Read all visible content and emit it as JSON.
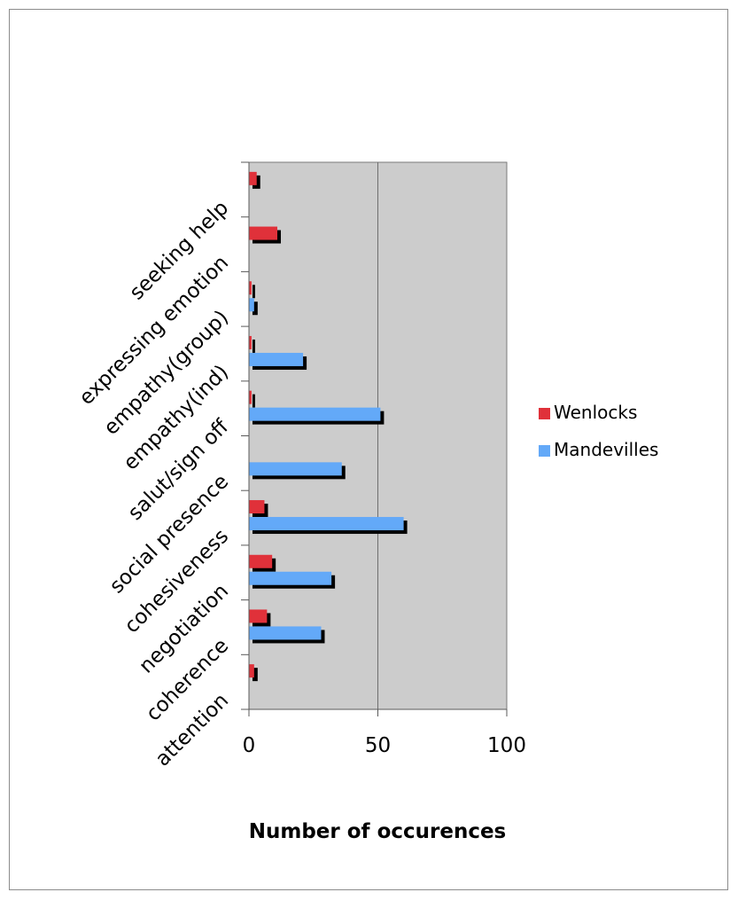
{
  "chart_data": {
    "type": "bar",
    "orientation": "horizontal",
    "categories": [
      "attention",
      "coherence",
      "negotiation",
      "cohesiveness",
      "social presence",
      "salut/sign off",
      "empathy(ind)",
      "empathy(group)",
      "expressing emotion",
      "seeking help"
    ],
    "series": [
      {
        "name": "Wenlocks",
        "color": "#e0313a",
        "values": [
          2,
          7,
          9,
          6,
          0,
          1,
          1,
          1,
          11,
          3
        ]
      },
      {
        "name": "Mandevilles",
        "color": "#63a9f8",
        "values": [
          0,
          28,
          32,
          60,
          36,
          51,
          21,
          2,
          0,
          0
        ]
      }
    ],
    "xlim": [
      0,
      100
    ],
    "xticks": [
      "0",
      "50",
      "100"
    ],
    "xlabel": "Number of occurences",
    "legend_position": "right",
    "grid": "vertical major",
    "plot_background": "#cccccc",
    "shadow_color": "#000000"
  }
}
